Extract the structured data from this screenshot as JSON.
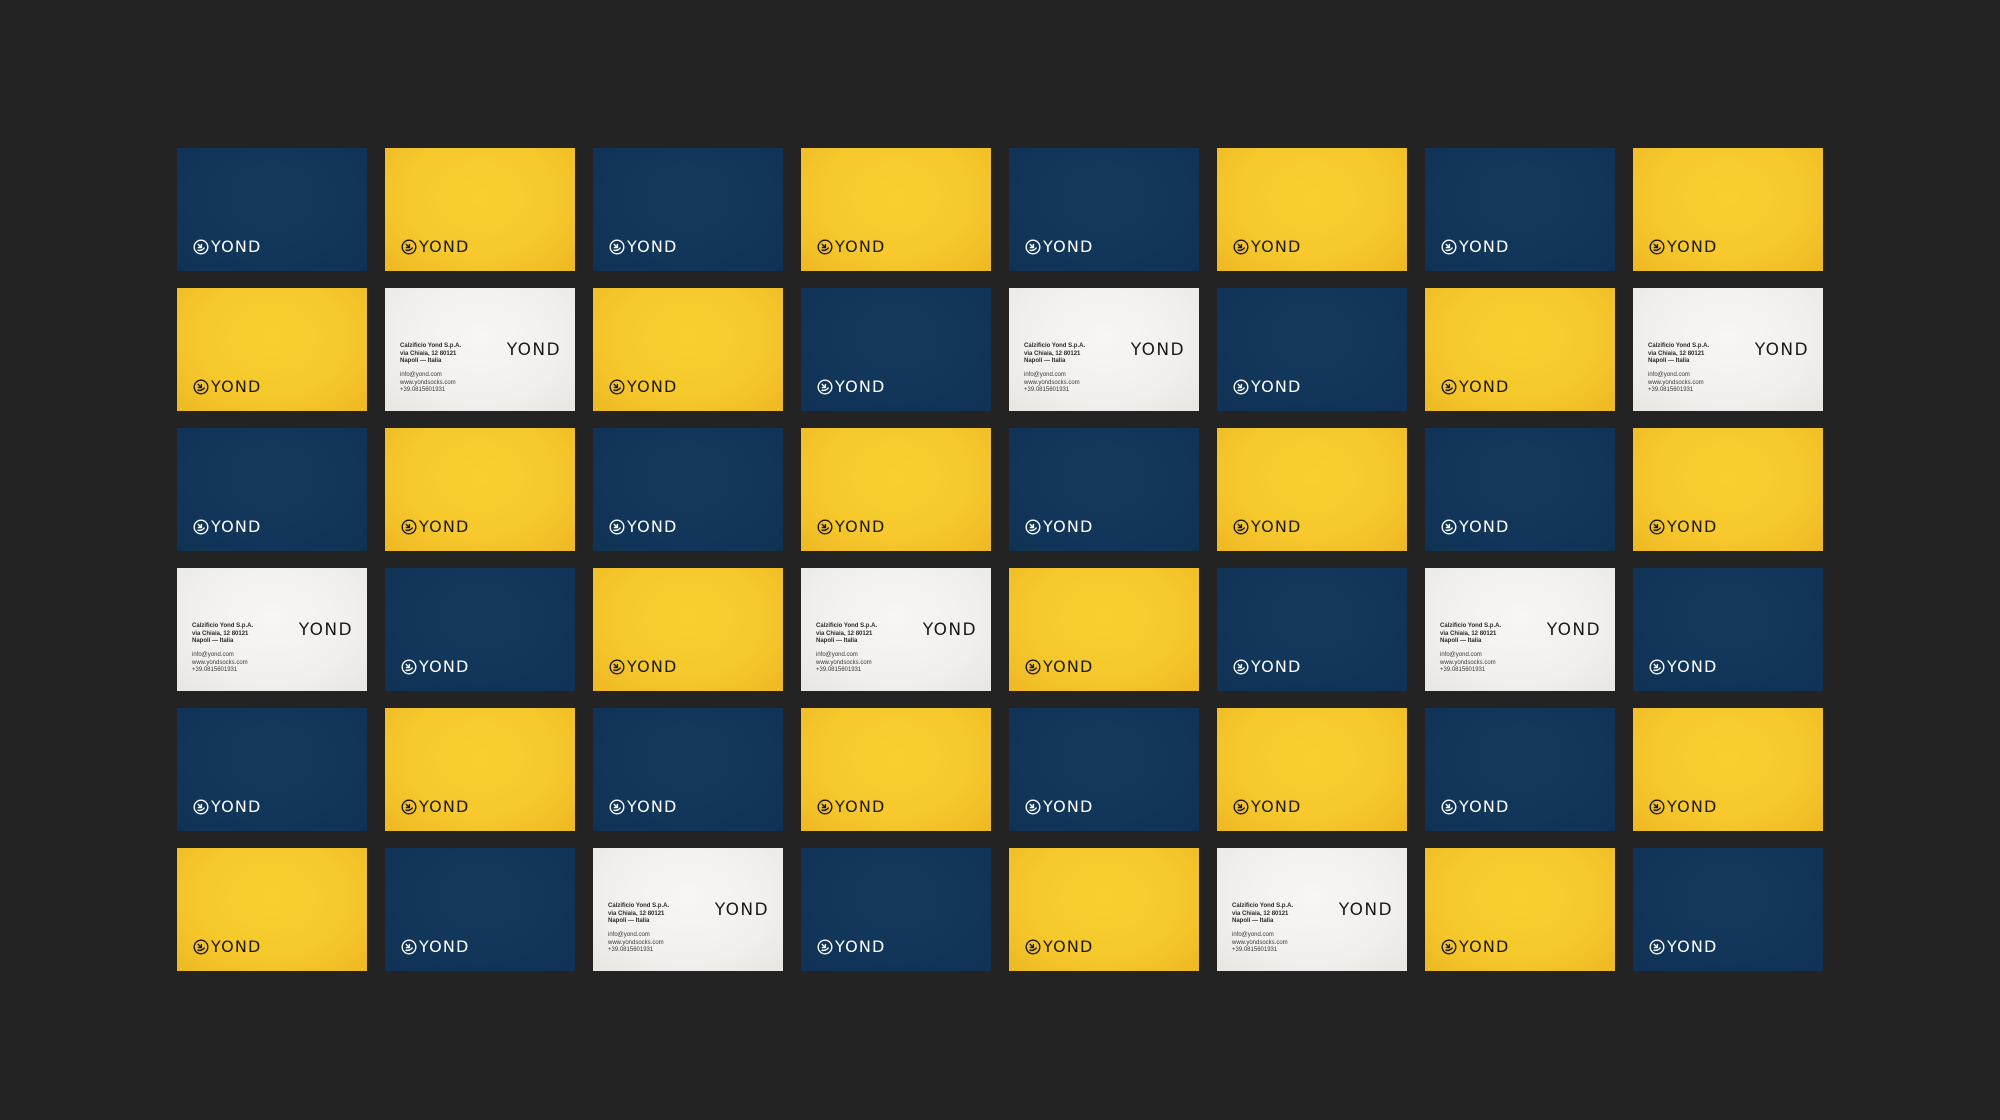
{
  "brand": {
    "wordmark": "YOND",
    "icon": "yond-arrow-circle-icon"
  },
  "card_back": {
    "wordmark": "YOND",
    "company": "Calzificio Yond S.p.A.",
    "street": "via Chiaia, 12 80121",
    "city": "Napoli — Italia",
    "email": "info@yond.com",
    "website": "www.yondsocks.com",
    "phone": "+39.0815601931"
  },
  "colors": {
    "background": "#232323",
    "navy": "#11365a",
    "yellow": "#f6c92c",
    "white": "#f1f0ec"
  },
  "grid": {
    "columns": 8,
    "rows": [
      [
        "navy",
        "yellow",
        "navy",
        "yellow",
        "navy",
        "yellow",
        "navy",
        "yellow"
      ],
      [
        "yellow",
        "white",
        "yellow",
        "navy",
        "white",
        "navy",
        "yellow",
        "white"
      ],
      [
        "navy",
        "yellow",
        "navy",
        "yellow",
        "navy",
        "yellow",
        "navy",
        "yellow"
      ],
      [
        "white",
        "navy",
        "yellow",
        "white",
        "yellow",
        "navy",
        "white",
        "navy"
      ],
      [
        "navy",
        "yellow",
        "navy",
        "yellow",
        "navy",
        "yellow",
        "navy",
        "yellow"
      ],
      [
        "yellow",
        "navy",
        "white",
        "navy",
        "yellow",
        "white",
        "yellow",
        "navy"
      ]
    ]
  }
}
